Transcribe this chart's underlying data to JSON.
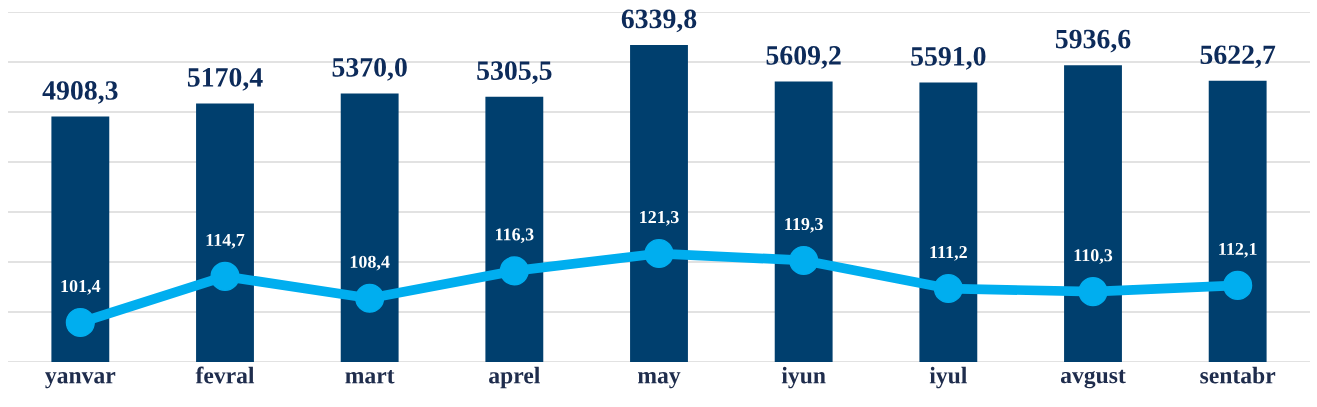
{
  "chart_data": {
    "type": "bar",
    "categories": [
      "yanvar",
      "fevral",
      "mart",
      "aprel",
      "may",
      "iyun",
      "iyul",
      "avgust",
      "sentabr"
    ],
    "series": [
      {
        "color": "#003f6e",
        "values": [
          4908.3,
          5170.4,
          5370.0,
          5305.5,
          6339.8,
          5609.2,
          5591.0,
          5936.6,
          5622.7
        ],
        "value_labels": [
          "4908,3",
          "5170,4",
          "5370,0",
          "5305,5",
          "6339,8",
          "5609,2",
          "5591,0",
          "5936,6",
          "5622,7"
        ]
      },
      {
        "type": "line",
        "axis": "y2",
        "color": "#00aeef",
        "marker": "circle",
        "values": [
          101.4,
          114.7,
          108.4,
          116.3,
          121.3,
          119.3,
          111.2,
          110.3,
          112.1
        ],
        "value_labels": [
          "101,4",
          "114,7",
          "108,4",
          "116,3",
          "121,3",
          "119,3",
          "111,2",
          "110,3",
          "112,1"
        ]
      }
    ],
    "ylim": [
      0,
      7000
    ],
    "yticks": [
      {
        "value": 0,
        "label": null
      },
      {
        "value": 1000,
        "label": null
      },
      {
        "value": 2000,
        "label": null
      },
      {
        "value": 3000,
        "label": null
      },
      {
        "value": 4000,
        "label": null
      },
      {
        "value": 5000,
        "label": null
      },
      {
        "value": 6000,
        "label": null
      },
      {
        "value": 7000,
        "label": null
      }
    ],
    "y2lim": [
      90,
      191
    ],
    "grid": "y",
    "tick_labels": "x"
  }
}
